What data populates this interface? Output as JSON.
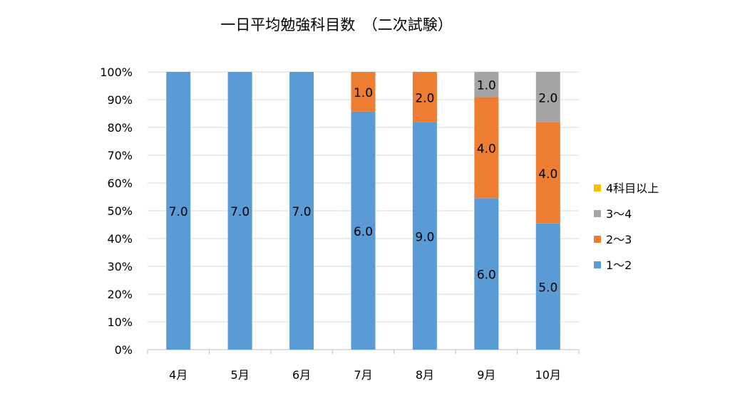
{
  "chart_data": {
    "type": "bar",
    "stacked": "percent",
    "title": "一日平均勉強科目数　（二次試験）",
    "xlabel": "",
    "ylabel": "",
    "ylim": [
      0,
      100
    ],
    "y_ticks": [
      "0%",
      "10%",
      "20%",
      "30%",
      "40%",
      "50%",
      "60%",
      "70%",
      "80%",
      "90%",
      "100%"
    ],
    "categories": [
      "4月",
      "5月",
      "6月",
      "7月",
      "8月",
      "9月",
      "10月"
    ],
    "series": [
      {
        "name": "1～2",
        "color": "#5b9bd5",
        "values": [
          7.0,
          7.0,
          7.0,
          6.0,
          9.0,
          6.0,
          5.0
        ],
        "labels": [
          "7.0",
          "7.0",
          "7.0",
          "6.0",
          "9.0",
          "6.0",
          "5.0"
        ]
      },
      {
        "name": "2～3",
        "color": "#ed7d31",
        "values": [
          0,
          0,
          0,
          1.0,
          2.0,
          4.0,
          4.0
        ],
        "labels": [
          "",
          "",
          "",
          "1.0",
          "2.0",
          "4.0",
          "4.0"
        ]
      },
      {
        "name": "3～4",
        "color": "#a5a5a5",
        "values": [
          0,
          0,
          0,
          0,
          0,
          1.0,
          2.0
        ],
        "labels": [
          "",
          "",
          "",
          "",
          "",
          "1.0",
          "2.0"
        ]
      },
      {
        "name": "4科目以上",
        "color": "#ffc000",
        "values": [
          0,
          0,
          0,
          0,
          0,
          0,
          0
        ],
        "labels": [
          "",
          "",
          "",
          "",
          "",
          "",
          ""
        ]
      }
    ],
    "legend_order": [
      3,
      2,
      1,
      0
    ],
    "legend_position": "right",
    "grid": true
  }
}
